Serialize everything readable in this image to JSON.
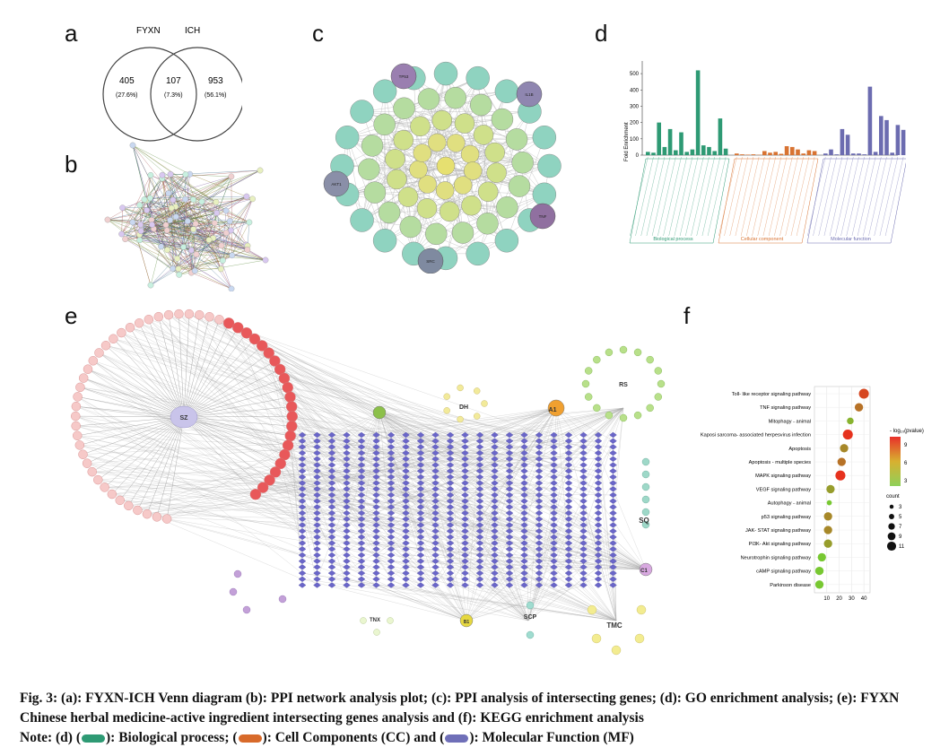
{
  "panels": {
    "a": "a",
    "b": "b",
    "c": "c",
    "d": "d",
    "e": "e",
    "f": "f"
  },
  "venn": {
    "left_label": "FYXN",
    "right_label": "ICH",
    "left_count": "405",
    "left_pct": "(27.6%)",
    "mid_count": "107",
    "mid_pct": "(7.3%)",
    "right_count": "953",
    "right_pct": "(56.1%)"
  },
  "ppi_c_labels": [
    "TP53",
    "IL1B",
    "AKT1",
    "TNF",
    "SRC"
  ],
  "go_chart": {
    "type": "bar",
    "ylabel": "Fold Enrichment",
    "ylim": [
      0,
      550
    ],
    "yticks": [
      "0",
      "100",
      "200",
      "300",
      "400",
      "500"
    ],
    "group_labels": [
      "Biological process",
      "Cellular component",
      "Molecular function"
    ],
    "colors": {
      "bp": "#2e9a74",
      "cc": "#d87332",
      "mf": "#6c6cb0"
    },
    "series": [
      {
        "name": "Biological process",
        "values": [
          20,
          15,
          200,
          50,
          160,
          30,
          140,
          20,
          35,
          520,
          60,
          50,
          25,
          225,
          40
        ]
      },
      {
        "name": "Cellular component",
        "values": [
          10,
          5,
          3,
          5,
          2,
          25,
          15,
          20,
          8,
          55,
          50,
          35,
          10,
          30,
          25
        ]
      },
      {
        "name": "Molecular function",
        "values": [
          10,
          35,
          5,
          160,
          125,
          10,
          10,
          5,
          420,
          20,
          240,
          215,
          15,
          185,
          155
        ]
      }
    ]
  },
  "network_e": {
    "hubs": [
      "SZ",
      "DH",
      "A1",
      "RS",
      "SQ",
      "C1",
      "B1",
      "SCP",
      "TMC",
      "TNX"
    ]
  },
  "kegg_chart": {
    "type": "scatter",
    "pathways": [
      "Toll- like receptor signaling pathway",
      "TNF signaling pathway",
      "Mitophagy - animal",
      "Kaposi sarcoma- associated herpesvirus infection",
      "Apoptosis",
      "Apoptosis - multiple species",
      "MAPK signaling pathway",
      "VEGF signaling pathway",
      "Autophagy - animal",
      "p53 signaling pathway",
      "JAK- STAT signaling pathway",
      "PI3K- Akt signaling pathway",
      "Neurotrophin signaling pathway",
      "cAMP signaling pathway",
      "Parkinson disease"
    ],
    "x": [
      40,
      36,
      29,
      27,
      24,
      22,
      21,
      13,
      12,
      11,
      11,
      11,
      6,
      4,
      4
    ],
    "count": [
      9,
      7,
      5,
      9,
      7,
      7,
      9,
      7,
      3,
      7,
      7,
      7,
      7,
      7,
      7
    ],
    "pvalue_log": [
      9,
      7,
      4,
      10,
      6,
      7,
      10,
      5,
      3,
      6,
      6,
      5,
      3,
      3,
      3
    ],
    "xticks": [
      "10",
      "20",
      "30",
      "40"
    ],
    "xlim": [
      0,
      45
    ],
    "legend_color_title": "- log₁₀(pvalue)",
    "legend_color_ticks": [
      "9",
      "6",
      "3"
    ],
    "legend_size_title": "count",
    "legend_size_ticks": [
      "3",
      "5",
      "7",
      "9",
      "11"
    ]
  },
  "caption": {
    "line1": "Fig. 3: (a): FYXN-ICH Venn diagram (b): PPI network analysis plot; (c): PPI analysis of intersecting genes; (d): GO enrichment analysis; (e): FYXN Chinese herbal medicine-active ingredient intersecting genes analysis and (f): KEGG enrichment analysis",
    "note_prefix": "Note: (d) (",
    "bp_text": "): Biological process; (",
    "cc_text": "): Cell Components (CC) and (",
    "mf_text": "): Molecular Function (MF)",
    "colors": {
      "bp": "#2e9a74",
      "cc": "#d86a2a",
      "mf": "#6f6fb8"
    }
  }
}
